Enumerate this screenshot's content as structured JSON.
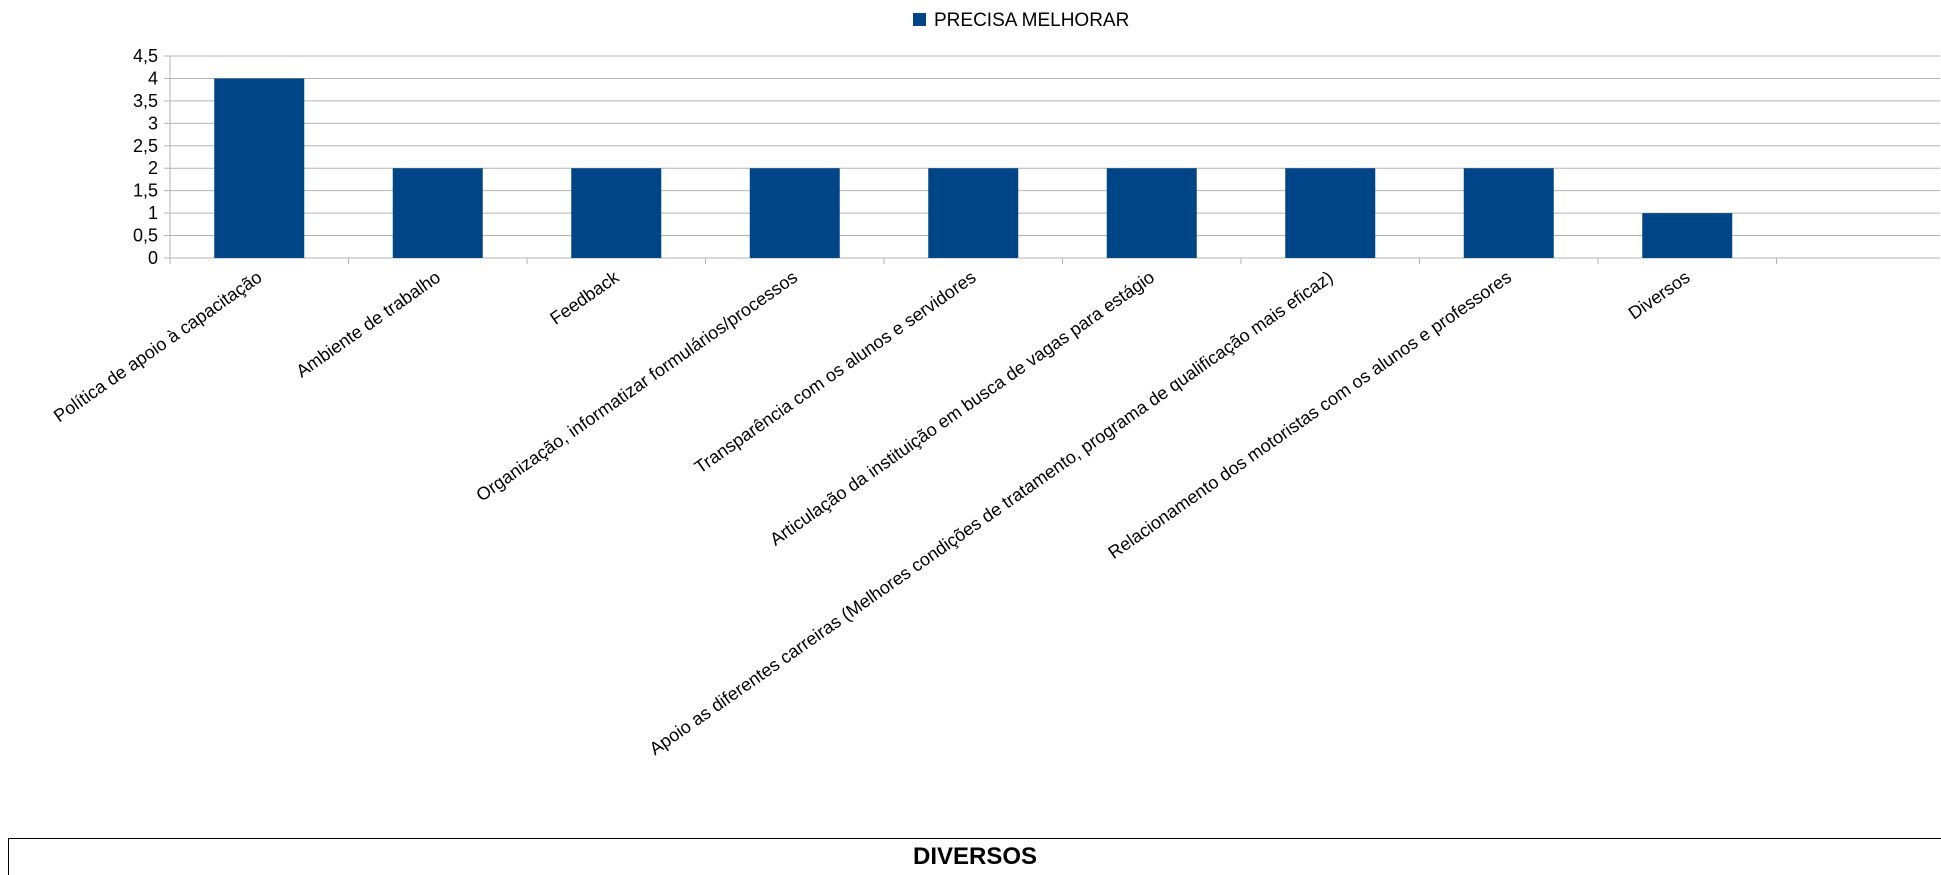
{
  "chart_data": {
    "type": "bar",
    "title": "",
    "xlabel": "",
    "ylabel": "",
    "categories": [
      "Política de apoio à capacitação",
      "Ambiente de trabalho",
      "Feedback",
      "Organização, informatizar formulários/processos",
      "Transparência com os alunos e servidores",
      "Articulação da instituição em busca de vagas para estágio",
      "Apoio as diferentes carreiras (Melhores condições de tratamento, programa de qualificação mais eficaz)",
      "Relacionamento dos motoristas com os alunos e professores",
      "Diversos"
    ],
    "series": [
      {
        "name": "PRECISA MELHORAR",
        "values": [
          4,
          2,
          2,
          2,
          2,
          2,
          2,
          2,
          1
        ],
        "color": "#004586"
      }
    ],
    "ylim": [
      0,
      4.5
    ],
    "yticks": [
      "0",
      "0,5",
      "1",
      "1,5",
      "2",
      "2,5",
      "3",
      "3,5",
      "4",
      "4,5"
    ],
    "grid": true,
    "legend": "top-center"
  },
  "section": {
    "title": "DIVERSOS"
  }
}
